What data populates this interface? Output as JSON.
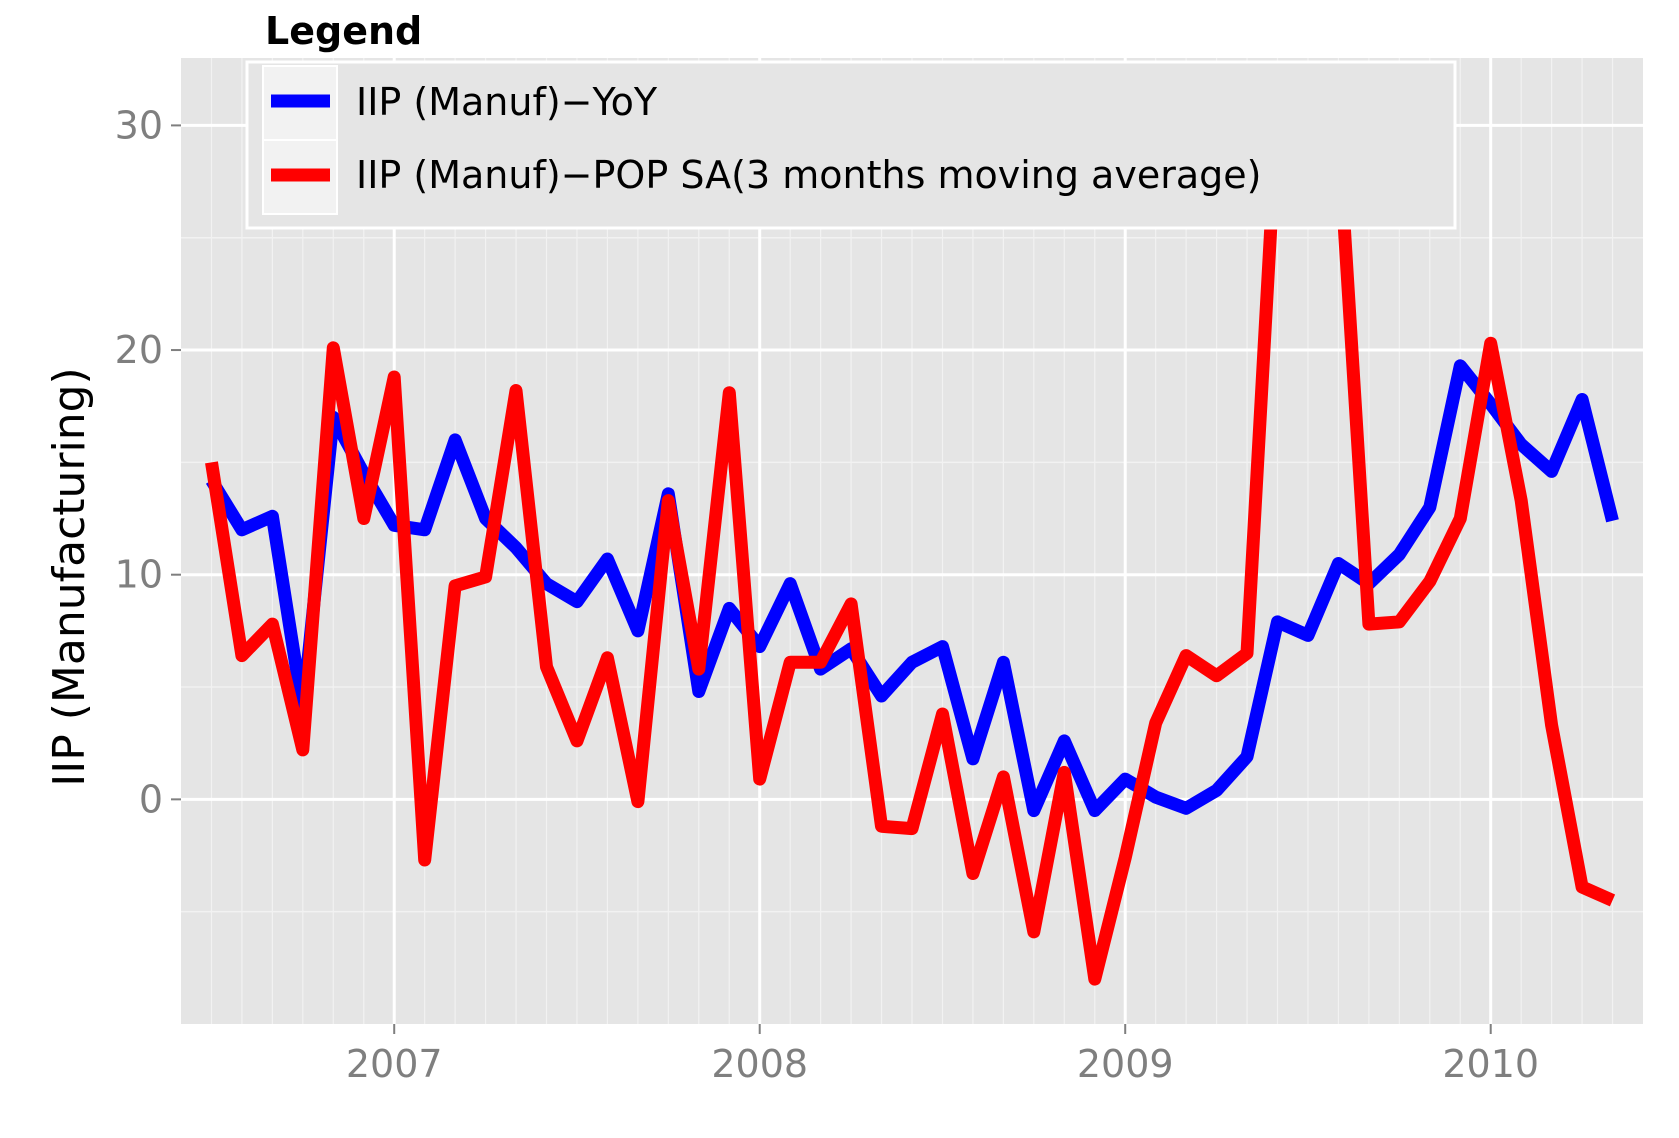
{
  "chart_data": {
    "type": "line",
    "title": "",
    "xlabel": "",
    "ylabel": "IIP (Manufacturing)",
    "x_unit": "month",
    "x_start": "2006-07",
    "x_end": "2010-05",
    "xlim": [
      "2006-06",
      "2010-06"
    ],
    "ylim": [
      -10,
      33
    ],
    "x_ticks": [
      {
        "value": "2007-01",
        "label": "2007"
      },
      {
        "value": "2008-01",
        "label": "2008"
      },
      {
        "value": "2009-01",
        "label": "2009"
      },
      {
        "value": "2010-01",
        "label": "2010"
      }
    ],
    "y_ticks": [
      0,
      10,
      20,
      30
    ],
    "grid": true,
    "legend": {
      "title": "Legend",
      "placement": "top-left"
    },
    "series": [
      {
        "name": "IIP (Manuf)−YoY",
        "color": "#0000ff",
        "values": [
          14.2,
          12.0,
          12.6,
          4.0,
          17.0,
          14.5,
          12.2,
          12.0,
          16.0,
          12.5,
          11.2,
          9.6,
          8.8,
          10.7,
          7.5,
          13.6,
          4.8,
          8.5,
          6.8,
          9.6,
          5.8,
          6.7,
          4.6,
          6.1,
          6.8,
          1.8,
          6.1,
          -0.5,
          2.6,
          -0.5,
          0.9,
          0.1,
          -0.4,
          0.4,
          1.9,
          7.9,
          7.3,
          10.5,
          9.6,
          10.9,
          13.0,
          19.3,
          17.6,
          15.8,
          14.6,
          17.8,
          12.4
        ]
      },
      {
        "name": "IIP (Manuf)−POP SA(3 months moving average)",
        "color": "#ff0000",
        "values": [
          15.0,
          6.4,
          7.8,
          2.2,
          20.1,
          12.5,
          18.8,
          -2.7,
          9.5,
          9.9,
          18.2,
          5.9,
          2.6,
          6.3,
          -0.1,
          13.3,
          5.8,
          18.1,
          0.9,
          6.1,
          6.1,
          8.7,
          -1.2,
          -1.3,
          3.8,
          -3.3,
          1.0,
          -5.9,
          1.2,
          -8.0,
          -2.6,
          3.4,
          6.4,
          5.5,
          6.5,
          30.8,
          30.8,
          29.7,
          7.8,
          7.9,
          9.7,
          12.5,
          20.3,
          13.3,
          3.3,
          -3.9,
          -4.5
        ]
      }
    ]
  }
}
